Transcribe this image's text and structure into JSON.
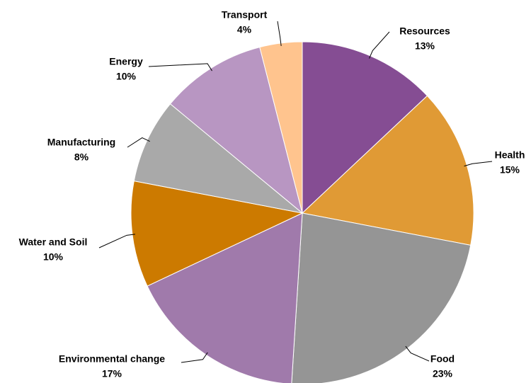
{
  "chart_data": {
    "type": "pie",
    "categories": [
      "Resources",
      "Health",
      "Food",
      "Environmental change",
      "Water and Soil",
      "Manufacturing",
      "Energy",
      "Transport"
    ],
    "values": [
      13,
      15,
      23,
      17,
      10,
      8,
      10,
      4
    ],
    "value_labels": [
      "13%",
      "15%",
      "23%",
      "17%",
      "10%",
      "8%",
      "10%",
      "4%"
    ],
    "colors": [
      "#854d93",
      "#e09a35",
      "#959595",
      "#a07aab",
      "#cc7a00",
      "#a9a9a9",
      "#b896c2",
      "#ffc48e"
    ]
  }
}
